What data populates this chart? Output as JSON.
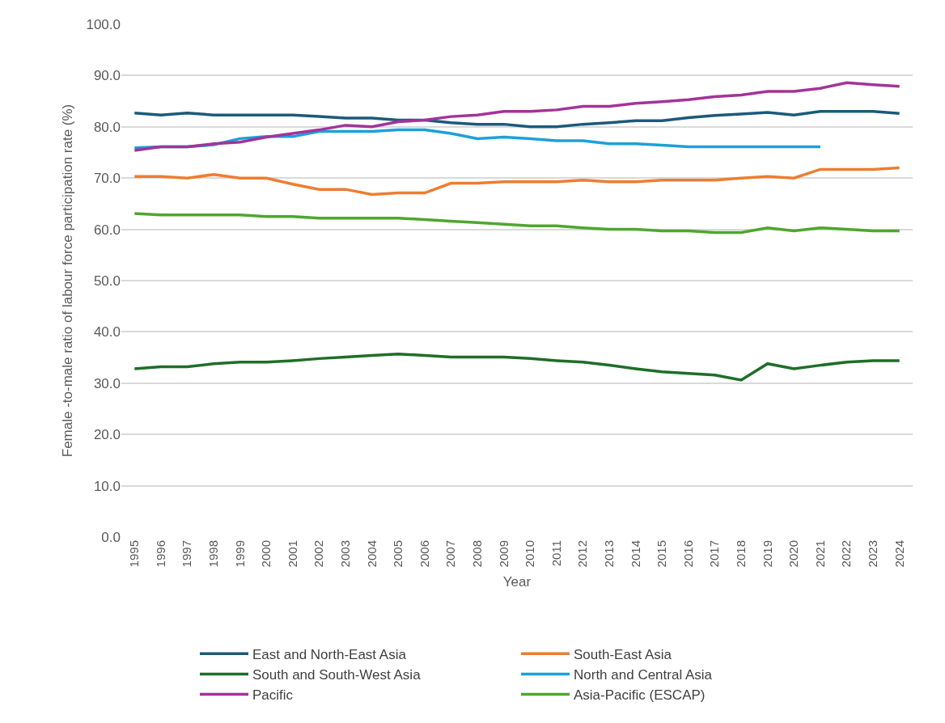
{
  "chart_data": {
    "type": "line",
    "xlabel": "Year",
    "ylabel": "Female -to-male ratio of labour force participation rate (%)",
    "categories": [
      "1995",
      "1996",
      "1997",
      "1998",
      "1999",
      "2000",
      "2001",
      "2002",
      "2003",
      "2004",
      "2005",
      "2006",
      "2007",
      "2008",
      "2009",
      "2010",
      "2011",
      "2012",
      "2013",
      "2014",
      "2015",
      "2016",
      "2017",
      "2018",
      "2019",
      "2020",
      "2021",
      "2022",
      "2023",
      "2024"
    ],
    "ylim": [
      0,
      100
    ],
    "yticks": [
      {
        "value": 0,
        "label": "0.0"
      },
      {
        "value": 10,
        "label": "10.0"
      },
      {
        "value": 20,
        "label": "20.0"
      },
      {
        "value": 30,
        "label": "30.0"
      },
      {
        "value": 40,
        "label": "40.0"
      },
      {
        "value": 50,
        "label": "50.0"
      },
      {
        "value": 60,
        "label": "60.0"
      },
      {
        "value": 70,
        "label": "70.0"
      },
      {
        "value": 80,
        "label": "80.0"
      },
      {
        "value": 90,
        "label": "90.0"
      },
      {
        "value": 100,
        "label": "100.0"
      }
    ],
    "grid": "y",
    "legend": "bottom",
    "marker": "none",
    "line_style": "solid",
    "series": [
      {
        "name": "East and North-East Asia",
        "color": "#1b5a7a",
        "values": [
          82.7,
          82.3,
          82.7,
          82.3,
          82.3,
          82.3,
          82.3,
          82.0,
          81.7,
          81.7,
          81.3,
          81.3,
          80.8,
          80.5,
          80.5,
          80.0,
          80.0,
          80.5,
          80.8,
          81.2,
          81.2,
          81.8,
          82.2,
          82.5,
          82.8,
          82.3,
          83.0,
          83.0,
          83.0,
          82.6
        ]
      },
      {
        "name": "South-East Asia",
        "color": "#ed7d31",
        "values": [
          70.3,
          70.3,
          70.0,
          70.7,
          70.0,
          70.0,
          68.8,
          67.8,
          67.8,
          66.8,
          67.1,
          67.1,
          69.0,
          69.0,
          69.3,
          69.3,
          69.3,
          69.6,
          69.3,
          69.3,
          69.6,
          69.6,
          69.6,
          70.0,
          70.3,
          70.0,
          71.7,
          71.7,
          71.7,
          72.0
        ]
      },
      {
        "name": "South and South-West Asia",
        "color": "#1e6e28",
        "values": [
          32.8,
          33.2,
          33.2,
          33.8,
          34.1,
          34.1,
          34.4,
          34.8,
          35.1,
          35.4,
          35.7,
          35.4,
          35.1,
          35.1,
          35.1,
          34.8,
          34.4,
          34.1,
          33.5,
          32.8,
          32.2,
          31.9,
          31.6,
          30.6,
          33.8,
          32.8,
          33.5,
          34.1,
          34.4,
          34.4
        ]
      },
      {
        "name": "North and Central Asia",
        "color": "#1ba1d8",
        "values": [
          75.9,
          76.1,
          76.1,
          76.5,
          77.7,
          78.1,
          78.1,
          79.1,
          79.1,
          79.1,
          79.4,
          79.4,
          78.7,
          77.7,
          78.0,
          77.7,
          77.3,
          77.3,
          76.7,
          76.7,
          76.4,
          76.1,
          76.1,
          76.1,
          76.1,
          76.1,
          76.1,
          null,
          null,
          null
        ]
      },
      {
        "name": "Pacific",
        "color": "#a33399",
        "values": [
          75.4,
          76.1,
          76.1,
          76.7,
          77.0,
          78.0,
          78.7,
          79.4,
          80.3,
          80.0,
          81.0,
          81.3,
          82.0,
          82.3,
          83.0,
          83.0,
          83.3,
          84.0,
          84.0,
          84.6,
          84.9,
          85.3,
          85.9,
          86.2,
          86.9,
          86.9,
          87.5,
          88.6,
          88.2,
          87.9
        ]
      },
      {
        "name": "Asia-Pacific (ESCAP)",
        "color": "#4ea72e",
        "values": [
          63.1,
          62.8,
          62.8,
          62.8,
          62.8,
          62.5,
          62.5,
          62.2,
          62.2,
          62.2,
          62.2,
          61.9,
          61.6,
          61.3,
          61.0,
          60.7,
          60.7,
          60.3,
          60.0,
          60.0,
          59.7,
          59.7,
          59.4,
          59.4,
          60.3,
          59.7,
          60.3,
          60.0,
          59.7,
          59.7
        ]
      }
    ]
  }
}
